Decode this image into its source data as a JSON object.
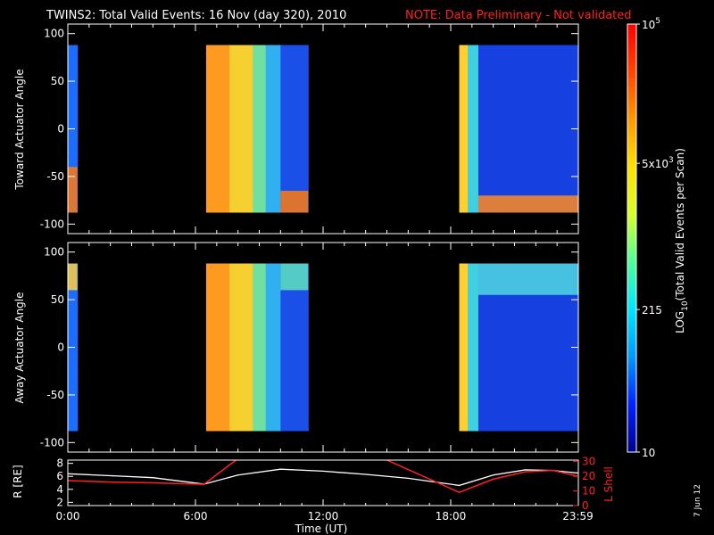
{
  "title": "TWINS2: Total Valid Events: 16 Nov (day 320), 2010",
  "note": "NOTE: Data Preliminary - Not validated",
  "date_stamp": "7 Jun 12",
  "colors": {
    "background": "#000000",
    "frame": "#ffffff",
    "note": "#ff2020",
    "lshell": "#ff2020",
    "radius": "#ffffff"
  },
  "chart_data": [
    {
      "type": "heatmap",
      "panel": "top",
      "ylabel": "Toward Actuator Angle",
      "yticks": [
        "100",
        "50",
        "0",
        "-50",
        "-100"
      ],
      "ytick_values": [
        100,
        50,
        0,
        -50,
        -100
      ],
      "ylim": [
        -110,
        110
      ],
      "xlim": [
        0,
        24
      ],
      "data_ylim": [
        -88,
        88
      ],
      "blocks": [
        {
          "x": [
            0.0,
            0.45
          ],
          "bands": [
            [
              0.0,
              0.45,
              "#1c6cff"
            ]
          ],
          "bottom_glow": [
            -88,
            -40,
            "#ff7a10"
          ]
        },
        {
          "x": [
            6.5,
            11.3
          ],
          "bands": [
            [
              6.5,
              7.6,
              "#ff9a20"
            ],
            [
              7.6,
              8.7,
              "#f5d030"
            ],
            [
              8.7,
              9.3,
              "#70e0a0"
            ],
            [
              9.3,
              10.0,
              "#30b0f0"
            ],
            [
              10.0,
              11.3,
              "#1a50e8"
            ]
          ],
          "bottom_glow": [
            -88,
            -65,
            "#ff7a10"
          ]
        },
        {
          "x": [
            18.4,
            23.99
          ],
          "bands": [
            [
              18.4,
              18.8,
              "#ffd030"
            ],
            [
              18.8,
              19.3,
              "#40d0e0"
            ],
            [
              19.3,
              23.99,
              "#1640e0"
            ]
          ],
          "bottom_glow": [
            -88,
            -70,
            "#ff8a20"
          ]
        }
      ]
    },
    {
      "type": "heatmap",
      "panel": "middle",
      "ylabel": "Away Actuator Angle",
      "xlabel": "",
      "yticks": [
        "100",
        "50",
        "0",
        "-50",
        "-100"
      ],
      "ytick_values": [
        100,
        50,
        0,
        -50,
        -100
      ],
      "ylim": [
        -110,
        110
      ],
      "xlim": [
        0,
        24
      ],
      "data_ylim": [
        -88,
        88
      ],
      "blocks": [
        {
          "x": [
            0.0,
            0.45
          ],
          "bands": [
            [
              0.0,
              0.45,
              "#1c6cff"
            ]
          ],
          "top_glow": [
            60,
            88,
            "#ffd040"
          ]
        },
        {
          "x": [
            6.5,
            11.3
          ],
          "bands": [
            [
              6.5,
              7.6,
              "#ff9a20"
            ],
            [
              7.6,
              8.7,
              "#f5d030"
            ],
            [
              8.7,
              9.3,
              "#70e0a0"
            ],
            [
              9.3,
              10.0,
              "#30b0f0"
            ],
            [
              10.0,
              11.3,
              "#1a50e8"
            ]
          ],
          "top_glow": [
            60,
            88,
            "#60e0c0"
          ]
        },
        {
          "x": [
            18.4,
            23.99
          ],
          "bands": [
            [
              18.4,
              18.8,
              "#ffd030"
            ],
            [
              18.8,
              19.3,
              "#40d0e0"
            ],
            [
              19.3,
              23.99,
              "#1640e0"
            ]
          ],
          "top_glow": [
            55,
            88,
            "#50d8e0"
          ]
        }
      ]
    },
    {
      "type": "line",
      "panel": "bottom",
      "xlabel": "Time (UT)",
      "ylabel_left": "R [RE]",
      "ylabel_right": "L Shell",
      "xticks": [
        "0:00",
        "6:00",
        "12:00",
        "18:00",
        "23:59"
      ],
      "xtick_values": [
        0,
        6,
        12,
        18,
        23.98
      ],
      "xlim": [
        0,
        24
      ],
      "left_yticks": [
        "2",
        "4",
        "6",
        "8"
      ],
      "left_ytick_values": [
        2,
        4,
        6,
        8
      ],
      "left_ylim": [
        1.5,
        8.5
      ],
      "right_yticks": [
        "0",
        "10",
        "20",
        "30"
      ],
      "right_ytick_values": [
        0,
        10,
        20,
        30
      ],
      "right_ylim": [
        0,
        31
      ],
      "series": [
        {
          "name": "R [RE]",
          "axis": "left",
          "x": [
            0,
            2,
            4,
            6.4,
            8,
            10,
            12,
            14,
            16,
            18.4,
            20,
            21.5,
            22.8,
            23.99
          ],
          "y": [
            6.4,
            6.1,
            5.8,
            4.8,
            6.2,
            7.1,
            6.8,
            6.3,
            5.7,
            4.6,
            6.2,
            7.0,
            6.9,
            6.5
          ]
        },
        {
          "name": "L Shell",
          "axis": "right",
          "segments": [
            {
              "x": [
                0,
                2,
                4,
                6.4,
                7.9
              ],
              "y": [
                17,
                16,
                15.5,
                14.5,
                31
              ]
            },
            {
              "x": [
                15,
                18.4,
                20,
                21.5,
                22.8,
                23.99
              ],
              "y": [
                31,
                9,
                18,
                23,
                24,
                20
              ]
            }
          ]
        }
      ]
    }
  ],
  "colorbar": {
    "label": "LOG10(Total Valid Events per Scan)",
    "label_main": "LOG",
    "label_sub": "10",
    "label_rest": "(Total Valid Events per Scan)",
    "tick_labels": [
      {
        "text": "10",
        "sup": "5",
        "value": 100000
      },
      {
        "text": "5x10",
        "sup": "3",
        "value": 5000
      },
      {
        "text": "215",
        "sup": "",
        "value": 215
      },
      {
        "text": "10",
        "sup": "",
        "value": 10
      }
    ],
    "range": [
      10,
      100000
    ],
    "scale": "log",
    "colors": [
      "#00008c",
      "#0022ff",
      "#0099ff",
      "#00e5ff",
      "#4cff9a",
      "#d8ff2a",
      "#ffe000",
      "#ff9900",
      "#ff4400",
      "#ff0000"
    ]
  }
}
